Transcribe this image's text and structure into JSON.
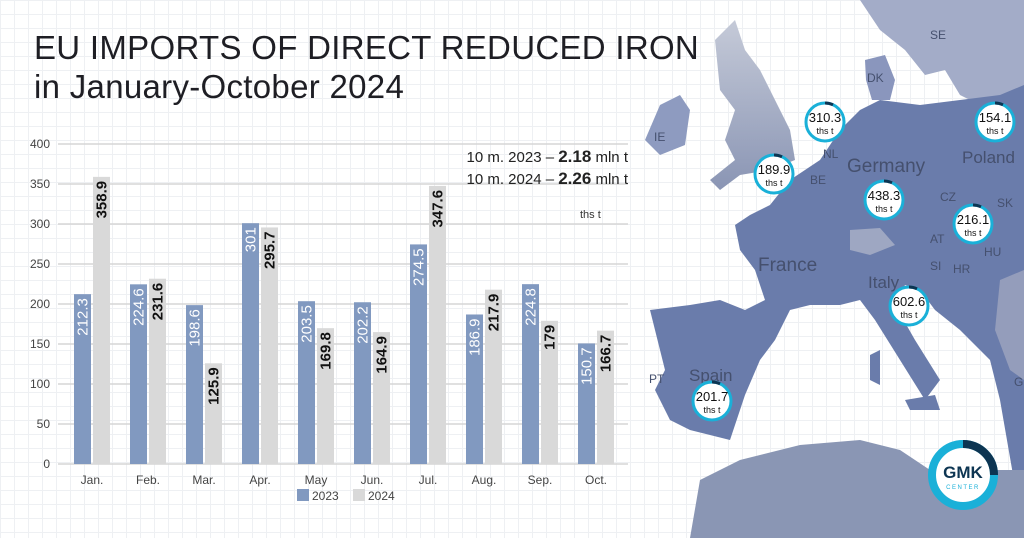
{
  "title": {
    "line1": "EU IMPORTS OF DIRECT REDUCED IRON",
    "line2": "in January-October 2024"
  },
  "totals": [
    {
      "label": "10 m. 2023 –",
      "value": "2.18",
      "unit": "mln t"
    },
    {
      "label": "10 m. 2024 –",
      "value": "2.26",
      "unit": "mln t"
    }
  ],
  "chart_data": {
    "type": "bar",
    "title": "EU IMPORTS OF DIRECT REDUCED IRON in January-October 2024",
    "unit_label": "ths t",
    "categories": [
      "Jan.",
      "Feb.",
      "Mar.",
      "Apr.",
      "May",
      "Jun.",
      "Jul.",
      "Aug.",
      "Sep.",
      "Oct."
    ],
    "series": [
      {
        "name": "2023",
        "color": "#8199c0",
        "values": [
          212.3,
          224.6,
          198.6,
          301,
          203.5,
          202.2,
          274.5,
          186.9,
          224.8,
          150.7
        ],
        "labels": [
          "212.3",
          "224.6",
          "198.6",
          "301",
          "203.5",
          "202.2",
          "274.5",
          "186.9",
          "224.8",
          "150.7"
        ]
      },
      {
        "name": "2024",
        "color": "#d9d9d9",
        "values": [
          358.9,
          231.6,
          125.9,
          295.7,
          169.8,
          164.9,
          347.6,
          217.9,
          179,
          166.7
        ],
        "labels": [
          "358.9",
          "231.6",
          "125.9",
          "295.7",
          "169.8",
          "164.9",
          "347.6",
          "217.9",
          "179",
          "166.7"
        ]
      }
    ],
    "yticks": [
      "0",
      "50",
      "100",
      "150",
      "200",
      "250",
      "300",
      "350",
      "400"
    ],
    "ylim": [
      0,
      400
    ],
    "grid": true,
    "legend": "bottom"
  },
  "map": {
    "countries": [
      "SE",
      "DK",
      "IE",
      "NL",
      "BE",
      "Germany",
      "Poland",
      "CZ",
      "SK",
      "AT",
      "HU",
      "SI",
      "HR",
      "France",
      "Italy",
      "Spain",
      "PT",
      "G"
    ],
    "bubbles": [
      {
        "value": "310.3",
        "unit": "ths t"
      },
      {
        "value": "189.9",
        "unit": "ths t"
      },
      {
        "value": "438.3",
        "unit": "ths t"
      },
      {
        "value": "154.1",
        "unit": "ths t"
      },
      {
        "value": "216.1",
        "unit": "ths t"
      },
      {
        "value": "602.6",
        "unit": "ths t"
      },
      {
        "value": "201.7",
        "unit": "ths t"
      }
    ],
    "logo": {
      "main": "GMK",
      "sub": "CENTER"
    }
  }
}
